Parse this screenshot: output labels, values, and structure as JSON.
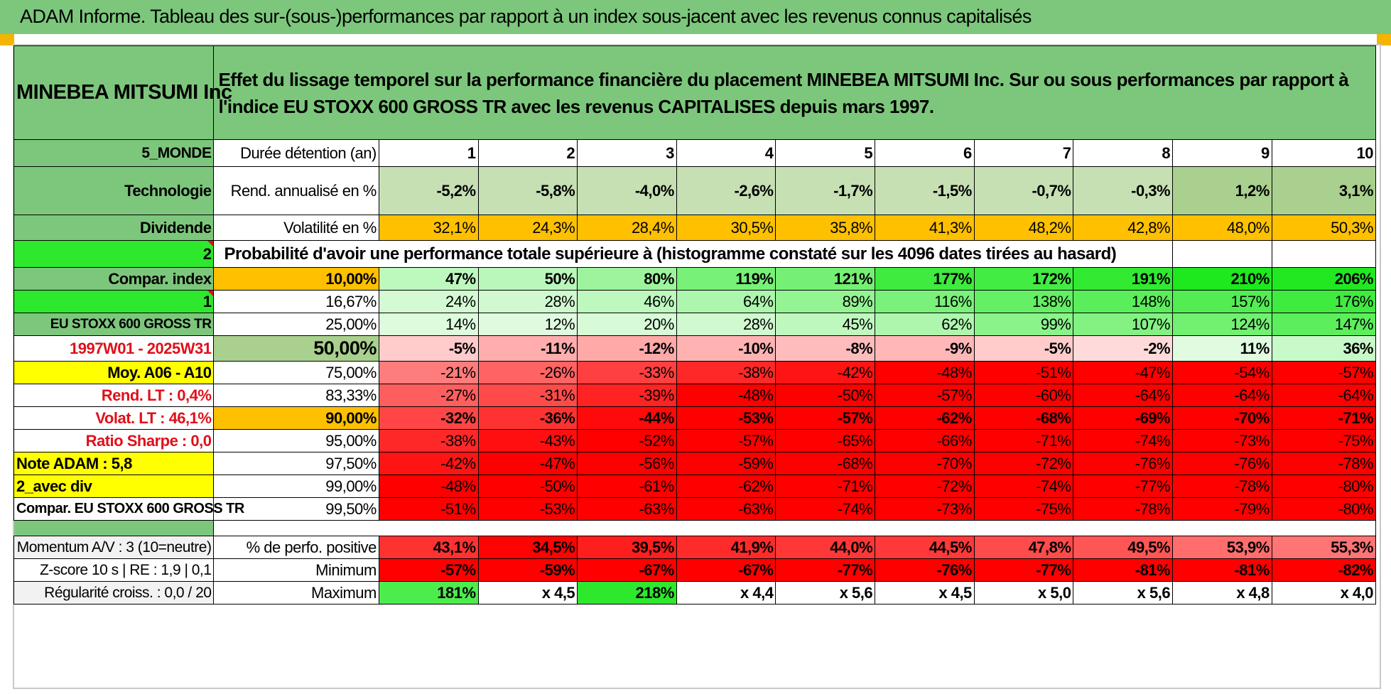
{
  "page_title": "ADAM Informe. Tableau des sur-(sous-)performances par rapport à un index sous-jacent avec les revenus connus capitalisés",
  "header": {
    "company": "MINEBEA MITSUMI Inc",
    "description": "Effet du lissage temporel sur la performance financière du placement MINEBEA MITSUMI Inc. Sur ou sous performances par rapport à l'indice EU STOXX 600 GROSS TR avec les revenus CAPITALISES depuis mars 1997."
  },
  "side_labels": {
    "region": "5_MONDE",
    "sector": "Technologie",
    "category": "Dividende",
    "num_a": "2",
    "compar_index": "Compar. index",
    "num_b": "1",
    "index_name": "EU STOXX 600 GROSS TR",
    "period": "1997W01 - 2025W31",
    "moy": "Moy. A06 - A10",
    "rend_lt": "Rend. LT :    0,4%",
    "volat_lt": "Volat. LT :    46,1%",
    "sharpe": "Ratio Sharpe :    0,0",
    "note": "Note ADAM : 5,8",
    "avec_div": "2_avec div",
    "compar_full": "Compar. EU STOXX 600 GROSS TR"
  },
  "metrics": {
    "duration_label": "Durée détention (an)",
    "years": [
      "1",
      "2",
      "3",
      "4",
      "5",
      "6",
      "7",
      "8",
      "9",
      "10"
    ],
    "rend_label": "Rend. annualisé en %",
    "rend": [
      "-5,2%",
      "-5,8%",
      "-4,0%",
      "-2,6%",
      "-1,7%",
      "-1,5%",
      "-0,7%",
      "-0,3%",
      "1,2%",
      "3,1%"
    ],
    "vol_label": "Volatilité en %",
    "vol": [
      "32,1%",
      "24,3%",
      "28,4%",
      "30,5%",
      "35,8%",
      "41,3%",
      "48,2%",
      "42,8%",
      "48,0%",
      "50,3%"
    ]
  },
  "probability_title": "Probabilité d'avoir une performance totale supérieure à (histogramme constaté sur les 4096 dates tirées au hasard)",
  "quantiles": [
    {
      "pct": "10,00%",
      "values": [
        "47%",
        "50%",
        "80%",
        "119%",
        "121%",
        "177%",
        "172%",
        "191%",
        "210%",
        "206%"
      ]
    },
    {
      "pct": "16,67%",
      "values": [
        "24%",
        "28%",
        "46%",
        "64%",
        "89%",
        "116%",
        "138%",
        "148%",
        "157%",
        "176%"
      ]
    },
    {
      "pct": "25,00%",
      "values": [
        "14%",
        "12%",
        "20%",
        "28%",
        "45%",
        "62%",
        "99%",
        "107%",
        "124%",
        "147%"
      ]
    },
    {
      "pct": "50,00%",
      "values": [
        "-5%",
        "-11%",
        "-12%",
        "-10%",
        "-8%",
        "-9%",
        "-5%",
        "-2%",
        "11%",
        "36%"
      ]
    },
    {
      "pct": "75,00%",
      "values": [
        "-21%",
        "-26%",
        "-33%",
        "-38%",
        "-42%",
        "-48%",
        "-51%",
        "-47%",
        "-54%",
        "-57%"
      ]
    },
    {
      "pct": "83,33%",
      "values": [
        "-27%",
        "-31%",
        "-39%",
        "-48%",
        "-50%",
        "-57%",
        "-60%",
        "-64%",
        "-64%",
        "-64%"
      ]
    },
    {
      "pct": "90,00%",
      "values": [
        "-32%",
        "-36%",
        "-44%",
        "-53%",
        "-57%",
        "-62%",
        "-68%",
        "-69%",
        "-70%",
        "-71%"
      ]
    },
    {
      "pct": "95,00%",
      "values": [
        "-38%",
        "-43%",
        "-52%",
        "-57%",
        "-65%",
        "-66%",
        "-71%",
        "-74%",
        "-73%",
        "-75%"
      ]
    },
    {
      "pct": "97,50%",
      "values": [
        "-42%",
        "-47%",
        "-56%",
        "-59%",
        "-68%",
        "-70%",
        "-72%",
        "-76%",
        "-76%",
        "-78%"
      ]
    },
    {
      "pct": "99,00%",
      "values": [
        "-48%",
        "-50%",
        "-61%",
        "-62%",
        "-71%",
        "-72%",
        "-74%",
        "-77%",
        "-78%",
        "-80%"
      ]
    },
    {
      "pct": "99,50%",
      "values": [
        "-51%",
        "-53%",
        "-63%",
        "-63%",
        "-74%",
        "-73%",
        "-75%",
        "-78%",
        "-79%",
        "-80%"
      ]
    }
  ],
  "bottom": {
    "momentum_label": "Momentum A/V : 3 (10=neutre)",
    "zscore_label": "Z-score 10 s | RE : 1,9 | 0,1",
    "regularite_label": "Régularité croiss. : 0,0 / 20",
    "pos_label": "% de perfo. positive",
    "pos": [
      "43,1%",
      "34,5%",
      "39,5%",
      "41,9%",
      "44,0%",
      "44,5%",
      "47,8%",
      "49,5%",
      "53,9%",
      "55,3%"
    ],
    "min_label": "Minimum",
    "min": [
      "-57%",
      "-59%",
      "-67%",
      "-67%",
      "-77%",
      "-76%",
      "-77%",
      "-81%",
      "-81%",
      "-82%"
    ],
    "max_label": "Maximum",
    "max": [
      "181%",
      "x 4,5",
      "218%",
      "x 4,4",
      "x 5,6",
      "x 4,5",
      "x 5,0",
      "x 5,6",
      "x 4,8",
      "x 4,0"
    ]
  },
  "colors": {
    "side_green": "#7dc77d",
    "bright_green": "#2ee82e",
    "yellow": "#ffff00",
    "orange": "#ffc000",
    "red": "#ff0000",
    "rend_green": "#c6e0b4"
  }
}
